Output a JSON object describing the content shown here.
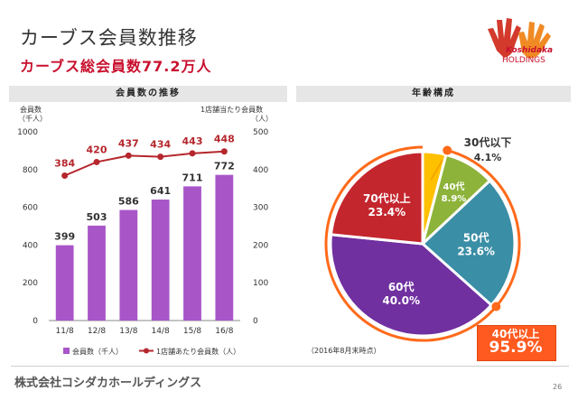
{
  "header": {
    "title": "カーブス会員数推移",
    "subtitle": "カーブス総会員数77.2万人"
  },
  "logo": {
    "name": "Koshidaka",
    "sub": "HOLDINGS",
    "icon": "hands-logo-icon"
  },
  "colors": {
    "accent_red": "#c8102e",
    "bar_purple": "#a855c8",
    "line_red": "#b5272d"
  },
  "left_panel": {
    "header": "会員数の推移",
    "left_axis_unit": "会員数\n（千人）",
    "right_axis_unit": "1店舗当たり会員数\n（人）",
    "legend_bar": "会員数（千人）",
    "legend_line": "1店舗あたり会員数（人）"
  },
  "right_panel": {
    "header": "年齢構成",
    "note": "（2016年8月末時点）",
    "callout_label": "40代以上",
    "callout_value": "95.9%"
  },
  "footer": {
    "company": "株式会社コシダカホールディングス",
    "page": "26"
  },
  "chart_data": [
    {
      "type": "bar",
      "title": "会員数の推移",
      "categories": [
        "11/8",
        "12/8",
        "13/8",
        "14/8",
        "15/8",
        "16/8"
      ],
      "series": [
        {
          "name": "会員数（千人）",
          "type": "bar",
          "axis": "left",
          "values": [
            399,
            503,
            586,
            641,
            711,
            772
          ]
        },
        {
          "name": "1店舗あたり会員数（人）",
          "type": "line",
          "axis": "right",
          "values": [
            384,
            420,
            437,
            434,
            443,
            448
          ]
        }
      ],
      "ylim": [
        0,
        1000
      ],
      "y_ticks": [
        0,
        200,
        400,
        600,
        800,
        1000
      ],
      "y2lim": [
        0,
        500
      ],
      "y2_ticks": [
        0,
        100,
        200,
        300,
        400,
        500
      ],
      "ylabel": "会員数（千人）",
      "y2label": "1店舗当たり会員数（人）",
      "legend": "bottom",
      "grid": false
    },
    {
      "type": "pie",
      "title": "年齢構成",
      "slices": [
        {
          "label": "30代以下",
          "value": 4.1,
          "display": "4.1%",
          "color": "#ffc000"
        },
        {
          "label": "40代",
          "value": 8.9,
          "display": "8.9%",
          "color": "#8db33a"
        },
        {
          "label": "50代",
          "value": 23.6,
          "display": "23.6%",
          "color": "#3a8ea5"
        },
        {
          "label": "60代",
          "value": 40.0,
          "display": "40.0%",
          "color": "#7030a0"
        },
        {
          "label": "70代以上",
          "value": 23.4,
          "display": "23.4%",
          "color": "#c4262e"
        }
      ]
    }
  ]
}
